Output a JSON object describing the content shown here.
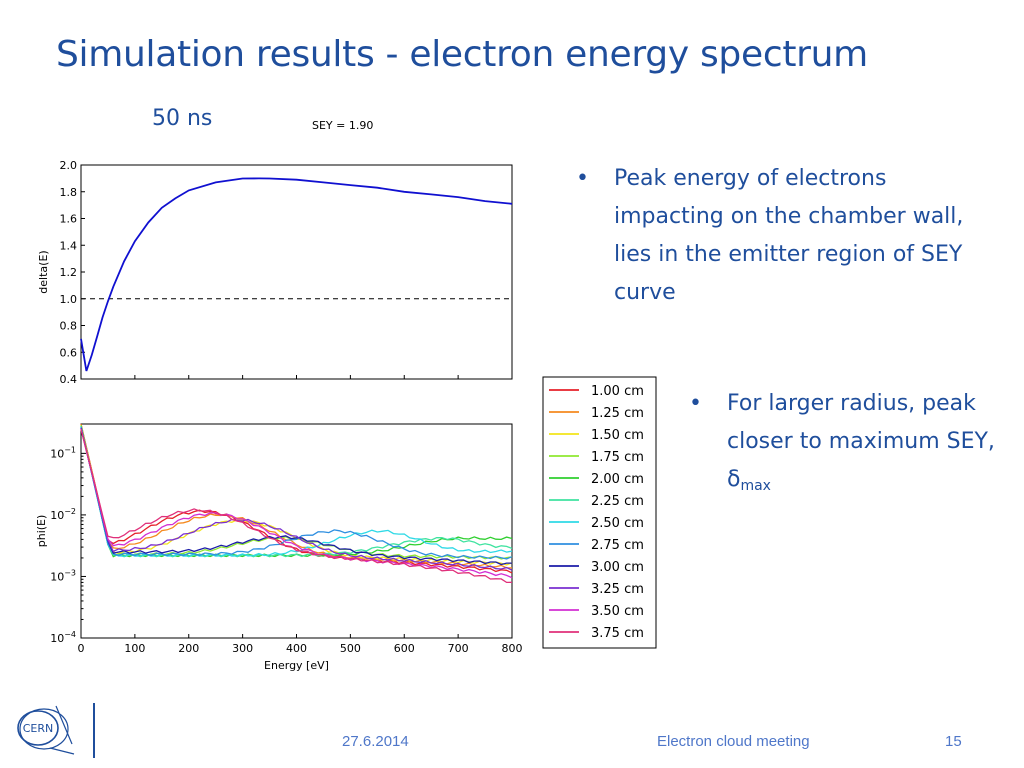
{
  "slide": {
    "title": "Simulation results - electron energy spectrum",
    "time_label": "50 ns",
    "bullets": [
      "Peak energy of electrons impacting on the chamber wall, lies in the emitter region of SEY curve",
      "For larger radius, peak closer to maximum SEY, δ"
    ],
    "bullet2_subscript": "max",
    "bullet_marker": "•"
  },
  "footer": {
    "date": "27.6.2014",
    "meeting": "Electron cloud meeting",
    "page": "15",
    "logo_text": "CERN"
  },
  "chart_data": [
    {
      "type": "line",
      "title": "SEY = 1.90",
      "xlabel": "",
      "ylabel": "delta(E)",
      "xlim": [
        0,
        800
      ],
      "ylim": [
        0.4,
        2.0
      ],
      "yticks": [
        "0.4",
        "0.6",
        "0.8",
        "1.0",
        "1.2",
        "1.4",
        "1.6",
        "1.8",
        "2.0"
      ],
      "grid": false,
      "reference_line": {
        "y": 1.0,
        "style": "dashed",
        "color": "#000000"
      },
      "series": [
        {
          "color": "#1010d0",
          "x": [
            0,
            10,
            20,
            30,
            40,
            50,
            60,
            80,
            100,
            125,
            150,
            175,
            200,
            250,
            300,
            330,
            350,
            400,
            450,
            500,
            550,
            600,
            650,
            700,
            750,
            800
          ],
          "y": [
            0.7,
            0.46,
            0.58,
            0.72,
            0.86,
            0.98,
            1.09,
            1.28,
            1.43,
            1.57,
            1.68,
            1.75,
            1.81,
            1.87,
            1.899,
            1.9,
            1.899,
            1.89,
            1.87,
            1.85,
            1.83,
            1.8,
            1.78,
            1.76,
            1.73,
            1.71
          ]
        }
      ]
    },
    {
      "type": "line",
      "title": "",
      "xlabel": "Energy [eV]",
      "ylabel": "phi(E)",
      "xlim": [
        0,
        800
      ],
      "xticks": [
        "0",
        "100",
        "200",
        "300",
        "400",
        "500",
        "600",
        "700",
        "800"
      ],
      "yscale": "log",
      "ylim": [
        0.0001,
        0.3
      ],
      "ytick_exponents": [
        -4,
        -3,
        -2,
        -1
      ],
      "grid": false,
      "legend_position": "outside-right",
      "series": [
        {
          "name": "1.00 cm",
          "color": "#e6202a",
          "peak_energy": 230,
          "floor": 0.0026,
          "end": 0.0012
        },
        {
          "name": "1.25 cm",
          "color": "#f58a1f",
          "peak_energy": 260,
          "floor": 0.0025,
          "end": 0.0014
        },
        {
          "name": "1.50 cm",
          "color": "#f2e51a",
          "peak_energy": 300,
          "floor": 0.0024,
          "end": 0.0016
        },
        {
          "name": "1.75 cm",
          "color": "#8fe830",
          "peak_energy": 380,
          "floor": 0.0023,
          "end": 0.002
        },
        {
          "name": "2.00 cm",
          "color": "#2fcf2f",
          "peak_energy": 720,
          "floor": 0.0022,
          "end": 0.0042
        },
        {
          "name": "2.25 cm",
          "color": "#3fe3a0",
          "peak_energy": 680,
          "floor": 0.0022,
          "end": 0.003
        },
        {
          "name": "2.50 cm",
          "color": "#2fd9e6",
          "peak_energy": 560,
          "floor": 0.0022,
          "end": 0.0026
        },
        {
          "name": "2.75 cm",
          "color": "#2f8fe0",
          "peak_energy": 480,
          "floor": 0.0023,
          "end": 0.002
        },
        {
          "name": "3.00 cm",
          "color": "#1c1ca8",
          "peak_energy": 380,
          "floor": 0.0025,
          "end": 0.0016
        },
        {
          "name": "3.25 cm",
          "color": "#7a2fd0",
          "peak_energy": 300,
          "floor": 0.0026,
          "end": 0.0013
        },
        {
          "name": "3.50 cm",
          "color": "#d22fd2",
          "peak_energy": 250,
          "floor": 0.0027,
          "end": 0.001
        },
        {
          "name": "3.75 cm",
          "color": "#e0307a",
          "peak_energy": 220,
          "floor": 0.003,
          "end": 0.0008
        }
      ]
    }
  ]
}
